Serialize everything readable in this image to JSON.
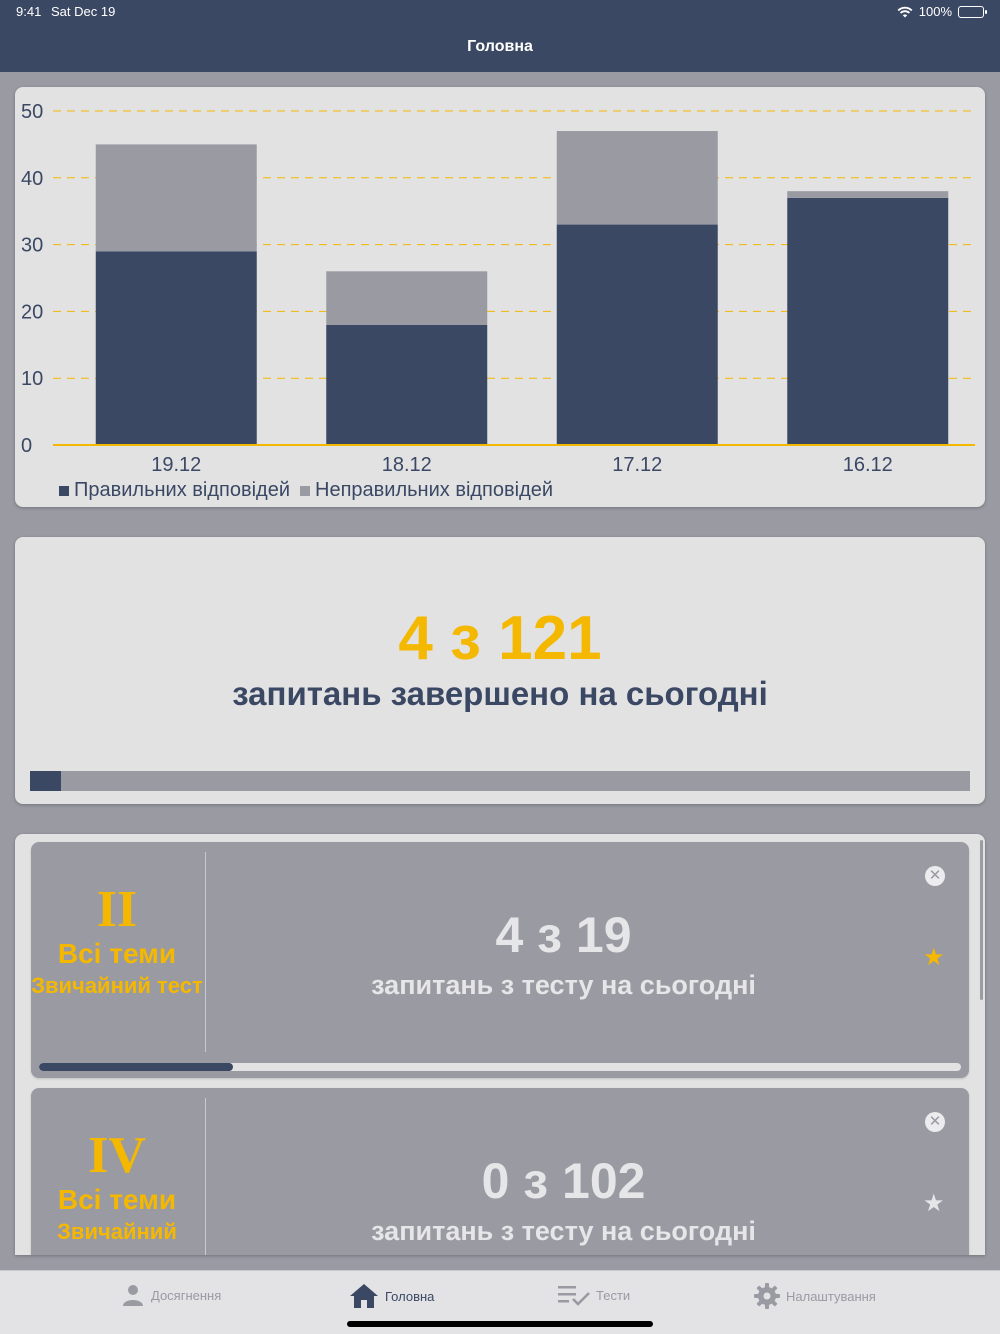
{
  "status_bar": {
    "time": "9:41",
    "date": "Sat Dec 19",
    "battery": "100%"
  },
  "nav": {
    "title": "Головна"
  },
  "colors": {
    "correct": "#3b4864",
    "incorrect": "#9a9aa3",
    "accent": "#f5b800",
    "grid": "#f5b800"
  },
  "chart_data": {
    "type": "bar",
    "stacked": true,
    "categories": [
      "19.12",
      "18.12",
      "17.12",
      "16.12"
    ],
    "series": [
      {
        "name": "Правильних відповідей",
        "values": [
          29,
          18,
          33,
          37
        ]
      },
      {
        "name": "Неправильних відповідей",
        "values": [
          16,
          8,
          14,
          1
        ]
      }
    ],
    "ylim": [
      0,
      50
    ],
    "yticks": [
      0,
      10,
      20,
      30,
      40,
      50
    ],
    "grid": true,
    "legend": "bottom-left"
  },
  "daily_progress": {
    "count_text": "4 з 121",
    "label": "запитань завершено на сьогодні",
    "done": 4,
    "total": 121
  },
  "tests": [
    {
      "roman": "II",
      "theme": "Всі теми",
      "type": "Звичайний тест",
      "count_text": "4 з 19",
      "label": "запитань з тесту на сьогодні",
      "done": 4,
      "total": 19,
      "favorite": true,
      "close_icon": "close-circle-icon",
      "star_icon": "star-icon"
    },
    {
      "roman": "IV",
      "theme": "Всі теми",
      "type": "Звичайний",
      "count_text": "0 з 102",
      "label": "запитань з тесту на сьогодні",
      "done": 0,
      "total": 102,
      "favorite": false,
      "close_icon": "close-circle-icon",
      "star_icon": "star-icon"
    }
  ],
  "tabbar": {
    "items": [
      {
        "label": "Досягнення",
        "icon": "person-icon",
        "active": false
      },
      {
        "label": "Головна",
        "icon": "home-icon",
        "active": true
      },
      {
        "label": "Тести",
        "icon": "checklist-icon",
        "active": false
      },
      {
        "label": "Налаштування",
        "icon": "gear-icon",
        "active": false
      }
    ]
  }
}
